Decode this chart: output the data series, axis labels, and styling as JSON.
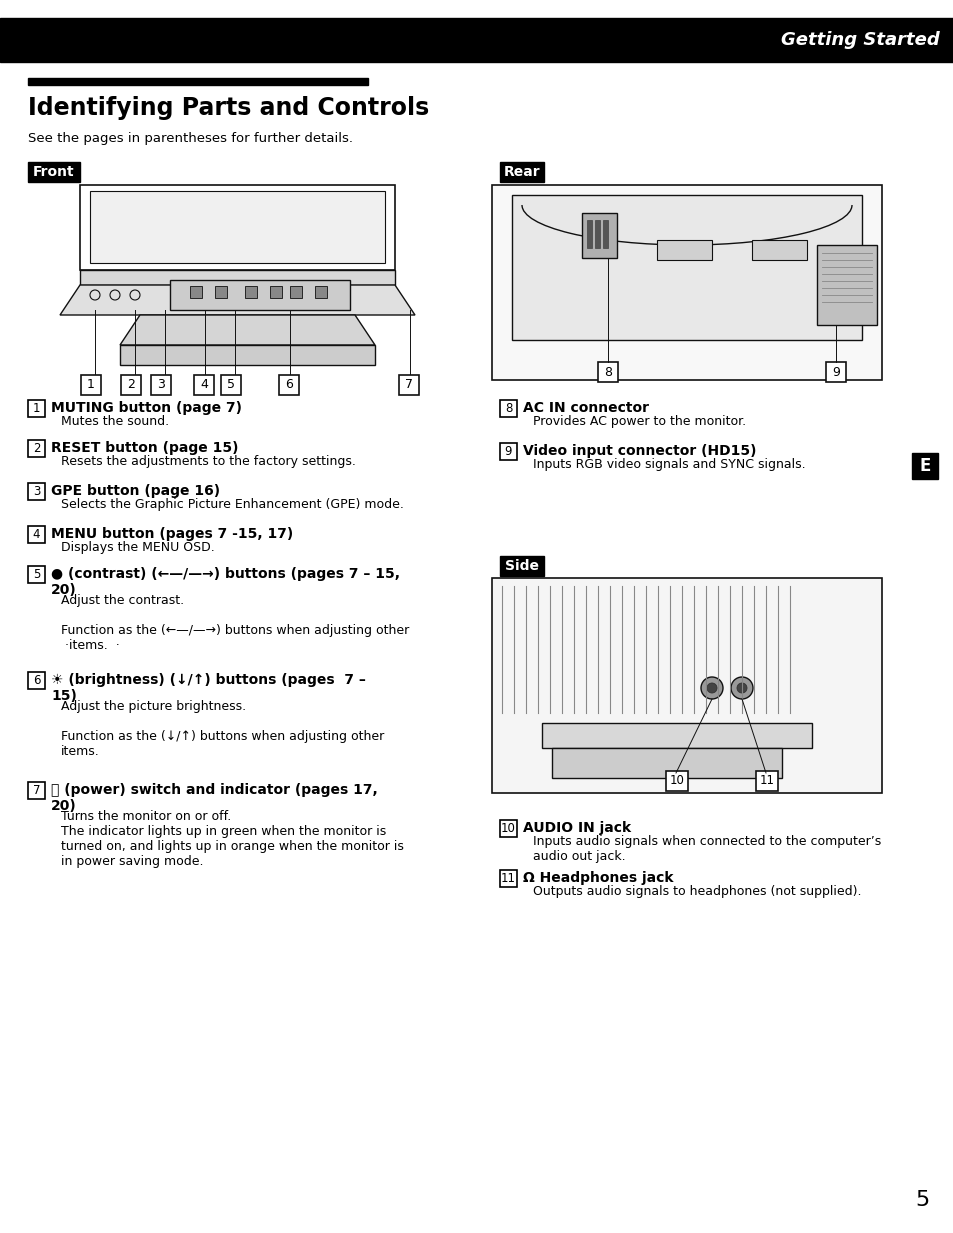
{
  "bg_color": "#ffffff",
  "header_bar_color": "#000000",
  "header_text": "Getting Started",
  "header_text_color": "#ffffff",
  "title": "Identifying Parts and Controls",
  "subtitle": "See the pages in parentheses for further details.",
  "front_label": "Front",
  "rear_label": "Rear",
  "side_label": "Side",
  "label_bg": "#000000",
  "label_text_color": "#ffffff",
  "section_bar_color": "#000000",
  "items_left": [
    {
      "num": "1",
      "bold": "MUTING button (page 7)",
      "normal": "Mutes the sound."
    },
    {
      "num": "2",
      "bold": "RESET button (page 15)",
      "normal": "Resets the adjustments to the factory settings."
    },
    {
      "num": "3",
      "bold": "GPE button (page 16)",
      "normal": "Selects the Graphic Picture Enhancement (GPE) mode."
    },
    {
      "num": "4",
      "bold": "MENU button (pages 7 -15, 17)",
      "normal": "Displays the MENU OSD."
    },
    {
      "num": "5",
      "bold": "● (contrast) (←—/—→) buttons (pages 7 – 15,\n20)",
      "normal": "Adjust the contrast.\n\nFunction as the (←—/—→) buttons when adjusting other\n ·items.  ·"
    },
    {
      "num": "6",
      "bold": "☀ (brightness) (↓/↑) buttons (pages  7 –\n15)",
      "normal": "Adjust the picture brightness.\n\nFunction as the (↓/↑) buttons when adjusting other\nitems."
    },
    {
      "num": "7",
      "bold": "⏻ (power) switch and indicator (pages 17,\n20)",
      "normal": "Turns the monitor on or off.\nThe indicator lights up in green when the monitor is\nturned on, and lights up in orange when the monitor is\nin power saving mode."
    }
  ],
  "items_right": [
    {
      "num": "8",
      "bold": "AC IN connector",
      "normal": "Provides AC power to the monitor."
    },
    {
      "num": "9",
      "bold": "Video input connector (HD15)",
      "normal": "Inputs RGB video signals and SYNC signals."
    },
    {
      "num": "10",
      "bold": "AUDIO IN jack",
      "normal": "Inputs audio signals when connected to the computer’s\naudio out jack."
    },
    {
      "num": "11",
      "bold": "Ω Headphones jack",
      "normal": "Outputs audio signals to headphones (not supplied)."
    }
  ],
  "e_box_color": "#000000",
  "e_box_text": "E",
  "page_number": "5"
}
